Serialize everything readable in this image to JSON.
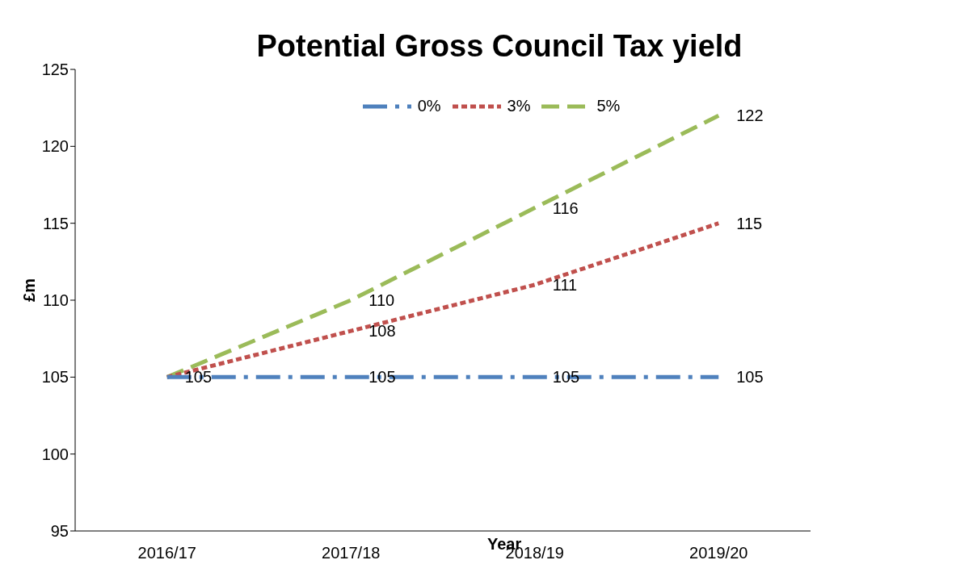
{
  "chart_data": {
    "type": "line",
    "title": "Potential Gross Council Tax yield",
    "xlabel": "Year",
    "ylabel": "£m",
    "categories": [
      "2016/17",
      "2017/18",
      "2018/19",
      "2019/20"
    ],
    "series": [
      {
        "name": "0%",
        "color": "#4f81bd",
        "values": [
          105,
          105,
          105,
          105
        ],
        "line_style": "dashdot",
        "value_labels": [
          "105",
          "105",
          "105",
          "105"
        ]
      },
      {
        "name": "3%",
        "color": "#c0504d",
        "values": [
          105,
          108,
          111,
          115
        ],
        "line_style": "dotted",
        "value_labels": [
          null,
          "108",
          "111",
          "115"
        ]
      },
      {
        "name": "5%",
        "color": "#9bbb59",
        "values": [
          105,
          110,
          116,
          122
        ],
        "line_style": "dashed",
        "value_labels": [
          null,
          "110",
          "116",
          "122"
        ]
      }
    ],
    "ylim": [
      95,
      125
    ],
    "yticks": [
      95,
      100,
      105,
      110,
      115,
      120,
      125
    ],
    "grid": false,
    "legend": "top",
    "marker": "none"
  }
}
